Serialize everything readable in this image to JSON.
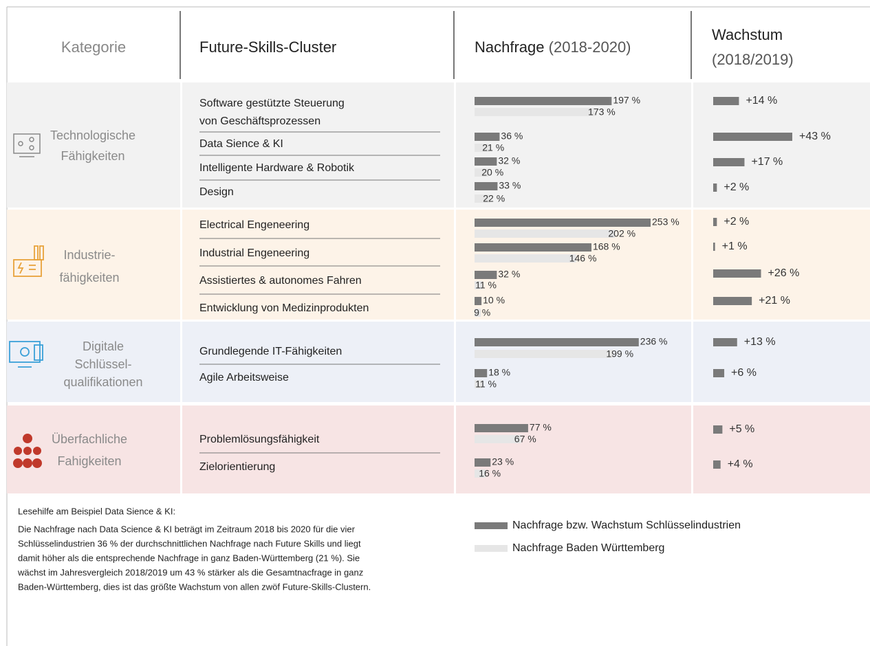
{
  "header": {
    "kategorie": "Kategorie",
    "cluster": "Future-Skills-Cluster",
    "nachfrage": "Nachfrage",
    "nachfrage_period": "(2018-2020)",
    "wachstum": "Wachstum",
    "wachstum_period": "(2018/2019)"
  },
  "sections": [
    {
      "category": [
        "Technologische",
        "Fähigkeiten"
      ],
      "rows": [
        {
          "label": [
            "Software gestützte Steuerung",
            "von Geschäftsprozessen"
          ],
          "demand": 197,
          "demand_label": "197 %",
          "bw": 173,
          "bw_label": "173 %",
          "growth": 14,
          "growth_label": "+14 %"
        },
        {
          "label": [
            "Data Sience & KI"
          ],
          "demand": 36,
          "demand_label": "36 %",
          "bw": 21,
          "bw_label": "21 %",
          "growth": 43,
          "growth_label": "+43 %"
        },
        {
          "label": [
            "Intelligente Hardware & Robotik"
          ],
          "demand": 32,
          "demand_label": "32 %",
          "bw": 20,
          "bw_label": "20 %",
          "growth": 17,
          "growth_label": "+17 %"
        },
        {
          "label": [
            "Design"
          ],
          "demand": 33,
          "demand_label": "33 %",
          "bw": 22,
          "bw_label": "22 %",
          "growth": 2,
          "growth_label": "+2 %"
        }
      ]
    },
    {
      "category": [
        "Industrie-",
        "fähigkeiten"
      ],
      "rows": [
        {
          "label": [
            "Electrical Engeneering"
          ],
          "demand": 253,
          "demand_label": "253 %",
          "bw": 202,
          "bw_label": "202 %",
          "growth": 2,
          "growth_label": "+2 %"
        },
        {
          "label": [
            "Industrial Engeneering"
          ],
          "demand": 168,
          "demand_label": "168 %",
          "bw": 146,
          "bw_label": "146 %",
          "growth": 1,
          "growth_label": "+1 %"
        },
        {
          "label": [
            "Assistiertes & autonomes Fahren"
          ],
          "demand": 32,
          "demand_label": "32 %",
          "bw": 11,
          "bw_label": "11 %",
          "growth": 26,
          "growth_label": "+26 %"
        },
        {
          "label": [
            "Entwicklung von Medizinprodukten"
          ],
          "demand": 10,
          "demand_label": "10 %",
          "bw": 9,
          "bw_label": "9 %",
          "growth": 21,
          "growth_label": "+21 %"
        }
      ]
    },
    {
      "category": [
        "Digitale",
        "Schlüssel-",
        "qualifikationen"
      ],
      "rows": [
        {
          "label": [
            "Grundlegende IT-Fähigkeiten"
          ],
          "demand": 236,
          "demand_label": "236 %",
          "bw": 199,
          "bw_label": "199 %",
          "growth": 13,
          "growth_label": "+13 %"
        },
        {
          "label": [
            "Agile Arbeitsweise"
          ],
          "demand": 18,
          "demand_label": "18 %",
          "bw": 11,
          "bw_label": "11 %",
          "growth": 6,
          "growth_label": "+6 %"
        }
      ]
    },
    {
      "category": [
        "Überfachliche",
        "Fahigkeiten"
      ],
      "rows": [
        {
          "label": [
            "Problemlösungsfähigkeit"
          ],
          "demand": 77,
          "demand_label": "77 %",
          "bw": 67,
          "bw_label": "67 %",
          "growth": 5,
          "growth_label": "+5 %"
        },
        {
          "label": [
            "Zielorientierung"
          ],
          "demand": 23,
          "demand_label": "23 %",
          "bw": 16,
          "bw_label": "16 %",
          "growth": 4,
          "growth_label": "+4 %"
        }
      ]
    }
  ],
  "note": {
    "title": "Lesehilfe am Beispiel Data Sience & KI:",
    "lines": [
      "Die Nachfrage nach Data Science & KI beträgt im Zeitraum 2018 bis 2020 für die vier",
      "Schlüsselindustrien 36 % der durchschnittlichen Nachfrage nach Future Skills und liegt",
      "damit höher als die entsprechende Nachfrage in ganz Baden-Württemberg (21 %). Sie",
      "wächst im Jahresvergleich 2018/2019 um 43 % stärker als die Gesamtnacfrage in ganz",
      "Baden-Württemberg, dies ist das größte Wachstum von allen zwöf Future-Skills-Clustern."
    ]
  },
  "legend": {
    "dark": "Nachfrage bzw. Wachstum Schlüsselindustrien",
    "light": "Nachfrage Baden Württemberg"
  }
}
